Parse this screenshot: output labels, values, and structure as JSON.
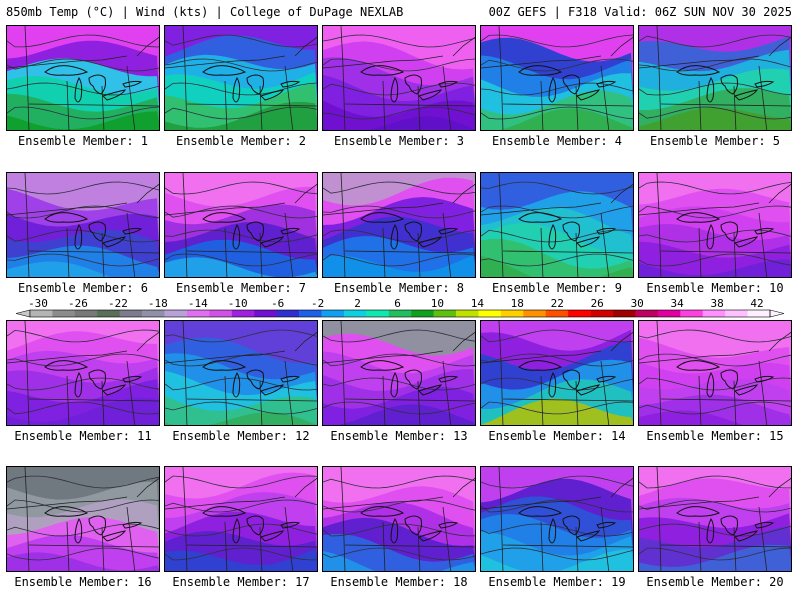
{
  "header": {
    "left": "850mb Temp (°C) | Wind (kts) | College of DuPage NEXLAB",
    "right": "00Z GEFS | F318 Valid: 06Z SUN NOV 30 2025"
  },
  "panels": [
    {
      "label": "Ensemble Member: 1",
      "palette": "m1"
    },
    {
      "label": "Ensemble Member: 2",
      "palette": "m2"
    },
    {
      "label": "Ensemble Member: 3",
      "palette": "m3"
    },
    {
      "label": "Ensemble Member: 4",
      "palette": "m4"
    },
    {
      "label": "Ensemble Member: 5",
      "palette": "m5"
    },
    {
      "label": "Ensemble Member: 6",
      "palette": "m6"
    },
    {
      "label": "Ensemble Member: 7",
      "palette": "m7"
    },
    {
      "label": "Ensemble Member: 8",
      "palette": "m8"
    },
    {
      "label": "Ensemble Member: 9",
      "palette": "m9"
    },
    {
      "label": "Ensemble Member: 10",
      "palette": "m10"
    },
    {
      "label": "Ensemble Member: 11",
      "palette": "m11"
    },
    {
      "label": "Ensemble Member: 12",
      "palette": "m12"
    },
    {
      "label": "Ensemble Member: 13",
      "palette": "m13"
    },
    {
      "label": "Ensemble Member: 14",
      "palette": "m14"
    },
    {
      "label": "Ensemble Member: 15",
      "palette": "m15"
    },
    {
      "label": "Ensemble Member: 16",
      "palette": "m16"
    },
    {
      "label": "Ensemble Member: 17",
      "palette": "m17"
    },
    {
      "label": "Ensemble Member: 18",
      "palette": "m18"
    },
    {
      "label": "Ensemble Member: 19",
      "palette": "m19"
    },
    {
      "label": "Ensemble Member: 20",
      "palette": "m20"
    }
  ],
  "colorbar": {
    "unit": "°C",
    "ticks": [
      "-30",
      "-26",
      "-22",
      "-18",
      "-14",
      "-10",
      "-6",
      "-2",
      "2",
      "6",
      "10",
      "14",
      "18",
      "22",
      "26",
      "30",
      "34",
      "38",
      "42"
    ],
    "colors": [
      "#b4b4b4",
      "#8c8c8c",
      "#787878",
      "#5a6e5a",
      "#7c7c8c",
      "#9090a8",
      "#b8a0d8",
      "#e070f0",
      "#d050e8",
      "#a020e0",
      "#7010d0",
      "#3030d0",
      "#2060e8",
      "#10a0f0",
      "#10d0e0",
      "#10e8b0",
      "#20c060",
      "#10a020",
      "#60c010",
      "#c0e000",
      "#ffff00",
      "#ffd000",
      "#ff9000",
      "#ff5000",
      "#ff0000",
      "#d00000",
      "#a00000",
      "#c00060",
      "#e000a0",
      "#ff40e0",
      "#ff90ff",
      "#ffc0ff",
      "#fff0ff"
    ]
  }
}
